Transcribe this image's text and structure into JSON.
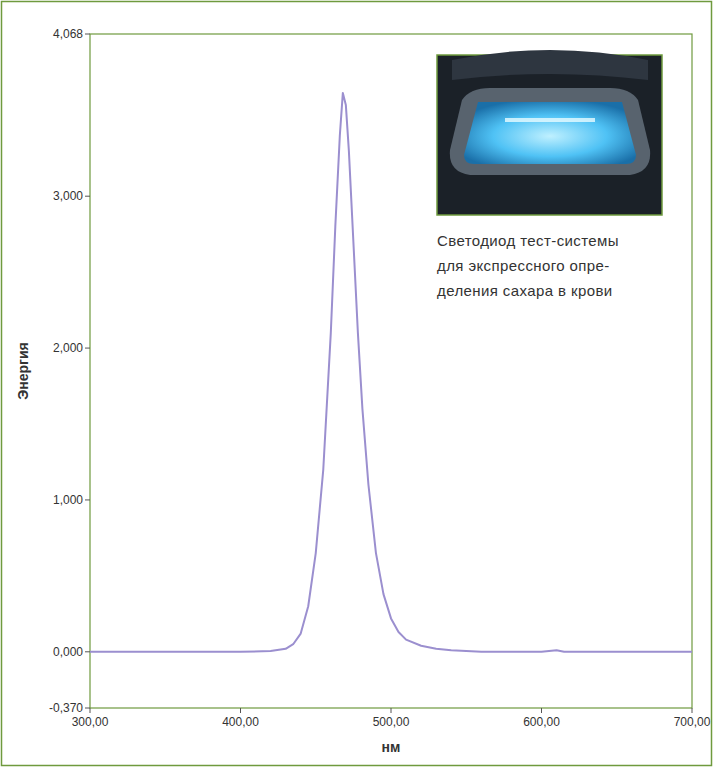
{
  "chart_data": {
    "type": "line",
    "x_label": "нм",
    "y_label": "Энергия",
    "annotations": [
      "Светодиод тест-системы",
      "для экспрессного опре-",
      "деления сахара в крови"
    ],
    "x": [
      300,
      400,
      420,
      430,
      435,
      440,
      445,
      450,
      455,
      460,
      463,
      466,
      468,
      470,
      472,
      475,
      478,
      481,
      485,
      490,
      495,
      500,
      505,
      510,
      520,
      530,
      540,
      550,
      560,
      600,
      610,
      615,
      700
    ],
    "values": [
      0,
      0,
      0.005,
      0.02,
      0.05,
      0.12,
      0.3,
      0.65,
      1.2,
      2.1,
      2.8,
      3.4,
      3.68,
      3.6,
      3.3,
      2.7,
      2.1,
      1.6,
      1.1,
      0.65,
      0.38,
      0.22,
      0.13,
      0.08,
      0.04,
      0.02,
      0.01,
      0.005,
      0,
      0,
      0.01,
      0,
      0
    ],
    "color": "#9b8fcf",
    "xlim": [
      300,
      700
    ],
    "ylim": [
      -0.37,
      4.068
    ],
    "xticks": [
      {
        "value": 300,
        "label": "300,00"
      },
      {
        "value": 400,
        "label": "400,00"
      },
      {
        "value": 500,
        "label": "500,00"
      },
      {
        "value": 600,
        "label": "600,00"
      },
      {
        "value": 700,
        "label": "700,00"
      }
    ],
    "yticks": [
      {
        "value": -0.37,
        "label": "-0,370"
      },
      {
        "value": 0,
        "label": "0,000"
      },
      {
        "value": 1,
        "label": "1,000"
      },
      {
        "value": 2,
        "label": "2,000"
      },
      {
        "value": 3,
        "label": "3,000"
      },
      {
        "value": 4.068,
        "label": "4,068"
      }
    ],
    "grid": false
  }
}
